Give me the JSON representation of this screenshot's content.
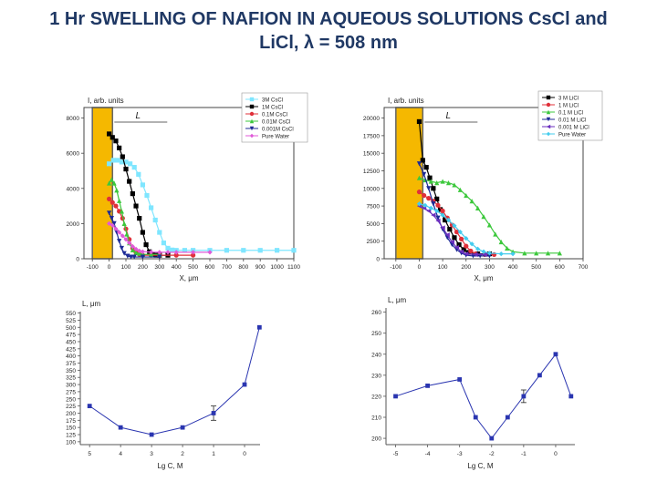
{
  "title_line1": "1 Hr SWELLING OF NAFION IN AQUEOUS SOLUTIONS CsCl and",
  "title_line2": "LiCl, λ = 508 nm",
  "chart_data": [
    {
      "type": "line",
      "ylabel": "I, arb. units",
      "xlabel": "X, μm",
      "xlim": [
        -150,
        1100
      ],
      "ylim": [
        0,
        8600
      ],
      "xticks": [
        -100,
        0,
        100,
        200,
        300,
        400,
        500,
        600,
        700,
        800,
        900,
        1000,
        1100
      ],
      "xtick_labels": [
        "-100",
        "0",
        "100",
        "200",
        "300",
        "400",
        "500",
        "600",
        "700",
        "800",
        "900",
        "1000",
        "1100"
      ],
      "yticks": [
        0,
        2000,
        4000,
        6000,
        8000
      ],
      "shaded_region": {
        "x": [
          -100,
          20
        ],
        "label": "L",
        "color": "#f5b800"
      },
      "legend_position": "top-right",
      "series": [
        {
          "name": "3M CsCl",
          "color": "#7fe6ff",
          "marker": "square",
          "x": [
            0,
            25,
            50,
            75,
            100,
            125,
            150,
            175,
            200,
            225,
            250,
            275,
            300,
            325,
            350,
            375,
            400,
            450,
            500,
            600,
            700,
            800,
            900,
            1000,
            1100
          ],
          "y": [
            5400,
            5600,
            5600,
            5500,
            5500,
            5400,
            5200,
            4800,
            4200,
            3600,
            2900,
            2200,
            1500,
            900,
            600,
            500,
            480,
            480,
            480,
            480,
            480,
            480,
            480,
            480,
            480
          ]
        },
        {
          "name": "1M CsCl",
          "color": "#000000",
          "marker": "square",
          "x": [
            0,
            20,
            40,
            60,
            80,
            100,
            120,
            140,
            160,
            180,
            200,
            220,
            240,
            260,
            280,
            300,
            350
          ],
          "y": [
            7100,
            6900,
            6700,
            6300,
            5800,
            5100,
            4400,
            3700,
            3000,
            2300,
            1500,
            800,
            400,
            250,
            200,
            200,
            200
          ]
        },
        {
          "name": "0.1M CsCl",
          "color": "#e0303a",
          "marker": "circle",
          "x": [
            0,
            20,
            40,
            60,
            80,
            100,
            120,
            140,
            160,
            180,
            200,
            250,
            300,
            400,
            500
          ],
          "y": [
            3400,
            3200,
            3000,
            2700,
            2300,
            1700,
            1100,
            600,
            350,
            250,
            200,
            200,
            200,
            200,
            200
          ]
        },
        {
          "name": "0.01M CsCl",
          "color": "#3cc83c",
          "marker": "triangle",
          "x": [
            0,
            15,
            30,
            45,
            60,
            75,
            90,
            105,
            120,
            140,
            160,
            180,
            200,
            250,
            300
          ],
          "y": [
            4300,
            4500,
            4300,
            3900,
            3300,
            2700,
            2000,
            1400,
            900,
            500,
            350,
            300,
            250,
            250,
            250
          ]
        },
        {
          "name": "0.001M CsCl",
          "color": "#1c2a96",
          "marker": "triangle-down",
          "x": [
            0,
            15,
            30,
            45,
            60,
            75,
            90,
            110,
            130,
            150,
            200,
            300
          ],
          "y": [
            2600,
            2300,
            2000,
            1500,
            1000,
            600,
            300,
            150,
            100,
            100,
            100,
            100
          ]
        },
        {
          "name": "Pure Water",
          "color": "#e05ad8",
          "marker": "diamond",
          "x": [
            0,
            20,
            40,
            60,
            80,
            100,
            120,
            140,
            160,
            180,
            200,
            250,
            300,
            350,
            400,
            500,
            600
          ],
          "y": [
            2000,
            1900,
            1700,
            1500,
            1300,
            1100,
            900,
            700,
            550,
            450,
            400,
            380,
            370,
            370,
            370,
            370,
            370
          ]
        }
      ]
    },
    {
      "type": "line",
      "ylabel": "I, arb. units",
      "xlabel": "X, μm",
      "xlim": [
        -150,
        700
      ],
      "ylim": [
        0,
        21500
      ],
      "xticks": [
        -100,
        0,
        100,
        200,
        300,
        400,
        500,
        600,
        700
      ],
      "xtick_labels": [
        "-100",
        "0",
        "100",
        "200",
        "300",
        "400",
        "500",
        "600",
        "700"
      ],
      "yticks": [
        0,
        2500,
        5000,
        7500,
        10000,
        12500,
        15000,
        17500,
        20000
      ],
      "shaded_region": {
        "x": [
          -100,
          15
        ],
        "label": "L",
        "color": "#f5b800"
      },
      "legend_position": "top-right",
      "series": [
        {
          "name": "3 M LiCl",
          "color": "#000000",
          "marker": "square",
          "x": [
            0,
            15,
            30,
            45,
            60,
            75,
            90,
            110,
            130,
            150,
            170,
            190,
            210,
            250,
            300
          ],
          "y": [
            19500,
            14000,
            13000,
            11500,
            10000,
            8500,
            7000,
            5500,
            4200,
            3000,
            2000,
            1300,
            900,
            700,
            700
          ]
        },
        {
          "name": "1 M LiCl",
          "color": "#e0303a",
          "marker": "circle",
          "x": [
            0,
            20,
            40,
            60,
            80,
            100,
            120,
            140,
            160,
            180,
            200,
            220,
            240,
            280,
            320
          ],
          "y": [
            9500,
            9000,
            8600,
            8200,
            7600,
            6800,
            5800,
            4800,
            3800,
            2800,
            1800,
            1100,
            700,
            600,
            600
          ]
        },
        {
          "name": "0.1 M LiCl",
          "color": "#3cc83c",
          "marker": "triangle",
          "x": [
            0,
            25,
            50,
            75,
            100,
            125,
            150,
            175,
            200,
            225,
            250,
            275,
            300,
            325,
            350,
            375,
            400,
            450,
            500,
            550,
            600
          ],
          "y": [
            11500,
            11200,
            11000,
            10800,
            11000,
            10800,
            10500,
            9800,
            9000,
            8200,
            7200,
            6000,
            4800,
            3500,
            2400,
            1500,
            1000,
            800,
            800,
            800,
            800
          ]
        },
        {
          "name": "0.01 M LiCl",
          "color": "#1c2a96",
          "marker": "triangle-down",
          "x": [
            0,
            20,
            40,
            60,
            80,
            100,
            120,
            140,
            160,
            180,
            200,
            230,
            260,
            300
          ],
          "y": [
            13500,
            12000,
            10000,
            7800,
            5800,
            4200,
            3000,
            2000,
            1300,
            800,
            500,
            400,
            400,
            400
          ]
        },
        {
          "name": "0.001 M LiCl",
          "color": "#6b2fbf",
          "marker": "triangle-left",
          "x": [
            0,
            20,
            40,
            60,
            80,
            100,
            120,
            140,
            160,
            180,
            200,
            240,
            280
          ],
          "y": [
            7500,
            7200,
            6800,
            6200,
            5400,
            4400,
            3400,
            2400,
            1600,
            1000,
            700,
            600,
            600
          ]
        },
        {
          "name": "Pure Water",
          "color": "#44ccee",
          "marker": "diamond",
          "x": [
            0,
            25,
            50,
            75,
            100,
            125,
            150,
            175,
            200,
            225,
            250,
            275,
            300,
            350,
            400
          ],
          "y": [
            7800,
            7600,
            7200,
            6800,
            6200,
            5500,
            4700,
            3800,
            2900,
            2100,
            1400,
            1000,
            800,
            700,
            700
          ]
        }
      ]
    },
    {
      "type": "line",
      "ylabel": "L, μm",
      "xlabel": "Lg C, M",
      "xlim": [
        5.3,
        -0.5
      ],
      "ylim": [
        90,
        555
      ],
      "xticks": [
        5,
        4,
        3,
        2,
        1,
        0
      ],
      "yticks": [
        100,
        125,
        150,
        175,
        200,
        225,
        250,
        275,
        300,
        325,
        350,
        375,
        400,
        425,
        450,
        475,
        500,
        525,
        550
      ],
      "series": [
        {
          "name": "",
          "color": "#2a35b0",
          "marker": "square",
          "x": [
            5,
            4,
            3,
            2,
            1,
            0,
            -0.48
          ],
          "y": [
            225,
            150,
            125,
            150,
            200,
            300,
            500
          ],
          "error_bars": [
            0,
            0,
            0,
            0,
            25,
            0,
            0
          ]
        }
      ]
    },
    {
      "type": "line",
      "ylabel": "L, μm",
      "xlabel": "Lg C, M",
      "xlim": [
        -5.3,
        0.6
      ],
      "ylim": [
        197,
        262
      ],
      "xticks": [
        -5,
        -4,
        -3,
        -2,
        -1,
        0
      ],
      "yticks": [
        200,
        210,
        220,
        230,
        240,
        250,
        260
      ],
      "series": [
        {
          "name": "",
          "color": "#2a35b0",
          "marker": "square",
          "x": [
            -5,
            -4,
            -3,
            -2.5,
            -2,
            -1.5,
            -1,
            -0.5,
            0,
            0.48
          ],
          "y": [
            220,
            225,
            228,
            210,
            200,
            210,
            220,
            230,
            240,
            220
          ],
          "error_bars": [
            0,
            0,
            0,
            0,
            0,
            0,
            3,
            0,
            0,
            0
          ]
        }
      ]
    }
  ]
}
